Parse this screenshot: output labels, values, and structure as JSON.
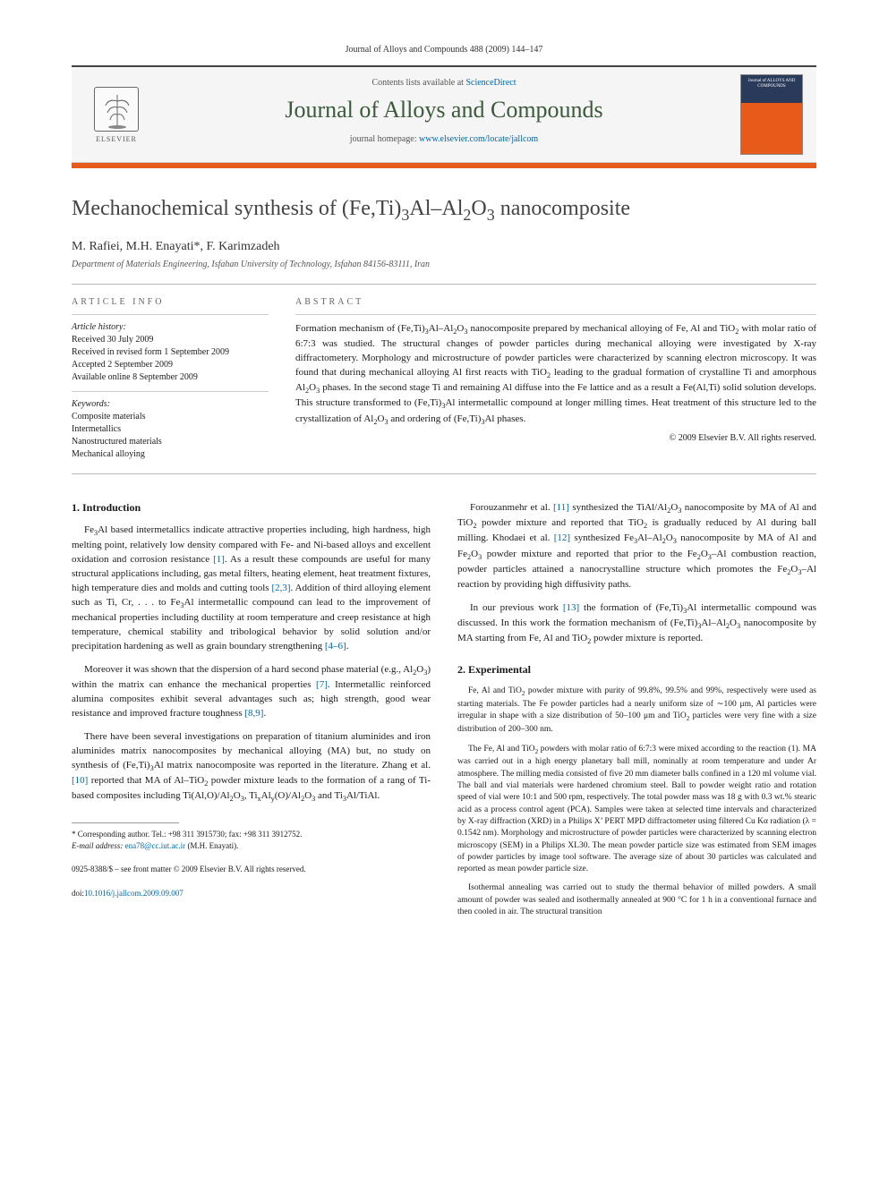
{
  "journal_header": "Journal of Alloys and Compounds 488 (2009) 144–147",
  "contents_prefix": "Contents lists available at ",
  "contents_link": "ScienceDirect",
  "journal_name": "Journal of Alloys and Compounds",
  "homepage_prefix": "journal homepage: ",
  "homepage_url": "www.elsevier.com/locate/jallcom",
  "publisher": "ELSEVIER",
  "cover_text": "Journal of ALLOYS AND COMPOUNDS",
  "title_html": "Mechanochemical synthesis of (Fe,Ti)<sub>3</sub>Al–Al<sub>2</sub>O<sub>3</sub> nanocomposite",
  "authors": "M. Rafiei, M.H. Enayati*, F. Karimzadeh",
  "affiliation": "Department of Materials Engineering, Isfahan University of Technology, Isfahan 84156-83111, Iran",
  "info_heading": "article info",
  "history_head": "Article history:",
  "history": [
    "Received 30 July 2009",
    "Received in revised form 1 September 2009",
    "Accepted 2 September 2009",
    "Available online 8 September 2009"
  ],
  "keywords_head": "Keywords:",
  "keywords": [
    "Composite materials",
    "Intermetallics",
    "Nanostructured materials",
    "Mechanical alloying"
  ],
  "abstract_heading": "abstract",
  "abstract_html": "Formation mechanism of (Fe,Ti)<sub>3</sub>Al–Al<sub>2</sub>O<sub>3</sub> nanocomposite prepared by mechanical alloying of Fe, Al and TiO<sub>2</sub> with molar ratio of 6:7:3 was studied. The structural changes of powder particles during mechanical alloying were investigated by X-ray diffractometery. Morphology and microstructure of powder particles were characterized by scanning electron microscopy. It was found that during mechanical alloying Al first reacts with TiO<sub>2</sub> leading to the gradual formation of crystalline Ti and amorphous Al<sub>2</sub>O<sub>3</sub> phases. In the second stage Ti and remaining Al diffuse into the Fe lattice and as a result a Fe(Al,Ti) solid solution develops. This structure transformed to (Fe,Ti)<sub>3</sub>Al intermetallic compound at longer milling times. Heat treatment of this structure led to the crystallization of Al<sub>2</sub>O<sub>3</sub> and ordering of (Fe,Ti)<sub>3</sub>Al phases.",
  "copyright": "© 2009 Elsevier B.V. All rights reserved.",
  "intro_heading": "1.  Introduction",
  "intro_p1_html": "Fe<sub>3</sub>Al based intermetallics indicate attractive properties including, high hardness, high melting point, relatively low density compared with Fe- and Ni-based alloys and excellent oxidation and corrosion resistance <a href=\"#\">[1]</a>. As a result these compounds are useful for many structural applications including, gas metal filters, heating element, heat treatment fixtures, high temperature dies and molds and cutting tools <a href=\"#\">[2,3]</a>. Addition of third alloying element such as Ti, Cr, . . . to Fe<sub>3</sub>Al intermetallic compound can lead to the improvement of mechanical properties including ductility at room temperature and creep resistance at high temperature, chemical stability and tribological behavior by solid solution and/or precipitation hardening as well as grain boundary strengthening <a href=\"#\">[4–6]</a>.",
  "intro_p2_html": "Moreover it was shown that the dispersion of a hard second phase material (e.g., Al<sub>2</sub>O<sub>3</sub>) within the matrix can enhance the mechanical properties <a href=\"#\">[7]</a>. Intermetallic reinforced alumina composites exhibit several advantages such as; high strength, good wear resistance and improved fracture toughness <a href=\"#\">[8,9]</a>.",
  "intro_p3_html": "There have been several investigations on preparation of titanium aluminides and iron aluminides matrix nanocomposites by mechanical alloying (MA) but, no study on synthesis of (Fe,Ti)<sub>3</sub>Al matrix nanocomposite was reported in the literature. Zhang et al. <a href=\"#\">[10]</a> reported that MA of Al–TiO<sub>2</sub> powder mixture leads to the formation of a rang of Ti-based composites including Ti(Al,O)/Al<sub>2</sub>O<sub>3</sub>, Ti<sub>x</sub>Al<sub>y</sub>(O)/Al<sub>2</sub>O<sub>3</sub> and Ti<sub>3</sub>Al/TiAl.",
  "right_p1_html": "Forouzanmehr et al. <a href=\"#\">[11]</a> synthesized the TiAl/Al<sub>2</sub>O<sub>3</sub> nanocomposite by MA of Al and TiO<sub>2</sub> powder mixture and reported that TiO<sub>2</sub> is gradually reduced by Al during ball milling. Khodaei et al. <a href=\"#\">[12]</a> synthesized Fe<sub>3</sub>Al–Al<sub>2</sub>O<sub>3</sub> nanocomposite by MA of Al and Fe<sub>2</sub>O<sub>3</sub> powder mixture and reported that prior to the Fe<sub>2</sub>O<sub>3</sub>–Al combustion reaction, powder particles attained a nanocrystalline structure which promotes the Fe<sub>2</sub>O<sub>3</sub>–Al reaction by providing high diffusivity paths.",
  "right_p2_html": "In our previous work <a href=\"#\">[13]</a> the formation of (Fe,Ti)<sub>3</sub>Al intermetallic compound was discussed. In this work the formation mechanism of (Fe,Ti)<sub>3</sub>Al–Al<sub>2</sub>O<sub>3</sub> nanocomposite by MA starting from Fe, Al and TiO<sub>2</sub> powder mixture is reported.",
  "exp_heading": "2.  Experimental",
  "exp_p1_html": "Fe, Al and TiO<sub>2</sub> powder mixture with purity of 99.8%, 99.5% and 99%, respectively were used as starting materials. The Fe powder particles had a nearly uniform size of ∼100 μm, Al particles were irregular in shape with a size distribution of 50–100 μm and TiO<sub>2</sub> particles were very fine with a size distribution of 200–300 nm.",
  "exp_p2_html": "The Fe, Al and TiO<sub>2</sub> powders with molar ratio of 6:7:3 were mixed according to the reaction (1). MA was carried out in a high energy planetary ball mill, nominally at room temperature and under Ar atmosphere. The milling media consisted of five 20 mm diameter balls confined in a 120 ml volume vial. The ball and vial materials were hardened chromium steel. Ball to powder weight ratio and rotation speed of vial were 10:1 and 500 rpm, respectively. The total powder mass was 18 g with 0.3 wt.% stearic acid as a process control agent (PCA). Samples were taken at selected time intervals and characterized by X-ray diffraction (XRD) in a Philips X’ PERT MPD diffractometer using filtered Cu Kα radiation (λ = 0.1542 nm). Morphology and microstructure of powder particles were characterized by scanning electron microscopy (SEM) in a Philips XL30. The mean powder particle size was estimated from SEM images of powder particles by image tool software. The average size of about 30 particles was calculated and reported as mean powder particle size.",
  "exp_p3_html": "Isothermal annealing was carried out to study the thermal behavior of milled powders. A small amount of powder was sealed and isothermally annealed at 900 °C for 1 h in a conventional furnace and then cooled in air. The structural transition",
  "footnote_star": "* Corresponding author. Tel.: +98 311 3915730; fax: +98 311 3912752.",
  "footnote_email_label": "E-mail address: ",
  "footnote_email": "ena78@cc.iut.ac.ir",
  "footnote_email_suffix": " (M.H. Enayati).",
  "footer1": "0925-8388/$ – see front matter © 2009 Elsevier B.V. All rights reserved.",
  "footer2_prefix": "doi:",
  "footer2_doi": "10.1016/j.jallcom.2009.09.007"
}
